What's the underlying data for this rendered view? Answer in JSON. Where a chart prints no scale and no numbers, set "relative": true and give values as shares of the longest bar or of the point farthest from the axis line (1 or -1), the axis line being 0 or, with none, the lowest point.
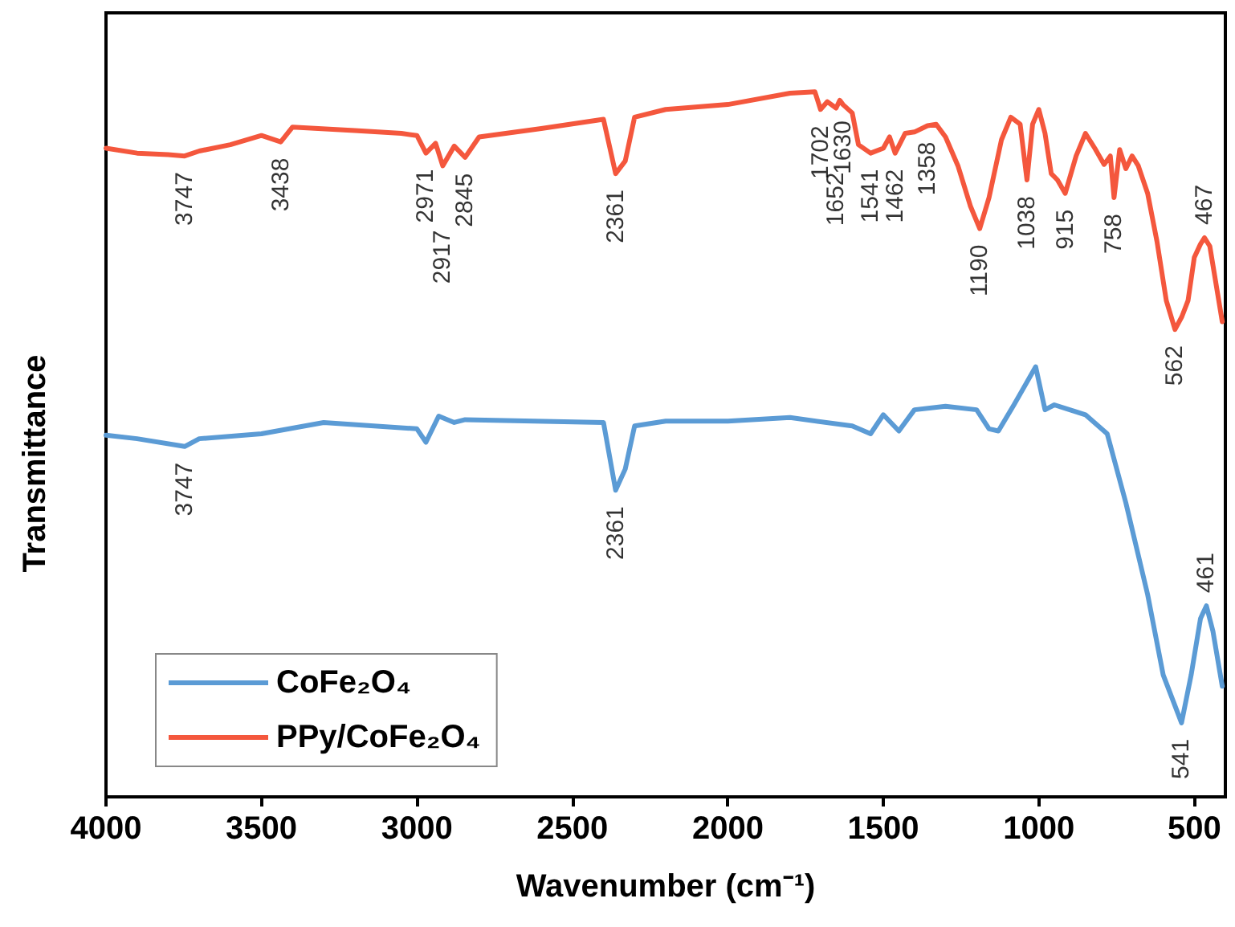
{
  "chart_data": {
    "type": "line",
    "relative": true,
    "xlabel": "Wavenumber (cm⁻¹)",
    "ylabel": "Transmittance",
    "xlim": [
      4000,
      400
    ],
    "xticks": [
      4000,
      3500,
      3000,
      2500,
      2000,
      1500,
      1000,
      500
    ],
    "x": [
      4000,
      3900,
      3747,
      3700,
      3500,
      3300,
      3000,
      2971,
      2930,
      2880,
      2845,
      2400,
      2361,
      2330,
      2300,
      2200,
      2000,
      1800,
      1600,
      1541,
      1500,
      1450,
      1400,
      1300,
      1200,
      1160,
      1130,
      1080,
      1010,
      980,
      950,
      850,
      780,
      720,
      650,
      600,
      541,
      510,
      480,
      461,
      440,
      410
    ],
    "series": [
      {
        "name": "CoFe₂O₄",
        "color": "#5b9bd5",
        "values": [
          0.513,
          0.508,
          0.497,
          0.508,
          0.515,
          0.531,
          0.522,
          0.503,
          0.54,
          0.531,
          0.535,
          0.531,
          0.435,
          0.465,
          0.526,
          0.533,
          0.533,
          0.538,
          0.526,
          0.515,
          0.542,
          0.519,
          0.549,
          0.554,
          0.549,
          0.522,
          0.519,
          0.556,
          0.61,
          0.549,
          0.556,
          0.542,
          0.515,
          0.417,
          0.287,
          0.173,
          0.105,
          0.173,
          0.253,
          0.271,
          0.235,
          0.157
        ]
      },
      {
        "name": "PPy/CoFe₂O₄",
        "color": "#f4573d",
        "x": [
          4000,
          3900,
          3800,
          3747,
          3700,
          3600,
          3500,
          3438,
          3400,
          3200,
          3050,
          3000,
          2971,
          2940,
          2917,
          2880,
          2845,
          2800,
          2600,
          2400,
          2361,
          2330,
          2300,
          2200,
          2000,
          1800,
          1720,
          1702,
          1680,
          1652,
          1640,
          1630,
          1600,
          1580,
          1541,
          1500,
          1480,
          1462,
          1430,
          1400,
          1358,
          1330,
          1300,
          1260,
          1220,
          1190,
          1160,
          1120,
          1090,
          1060,
          1038,
          1020,
          1000,
          980,
          960,
          940,
          915,
          880,
          850,
          820,
          790,
          770,
          758,
          740,
          720,
          700,
          680,
          650,
          620,
          590,
          562,
          540,
          520,
          500,
          480,
          467,
          450,
          410
        ],
        "values": [
          0.92,
          0.913,
          0.911,
          0.909,
          0.916,
          0.925,
          0.938,
          0.929,
          0.95,
          0.945,
          0.941,
          0.938,
          0.913,
          0.927,
          0.895,
          0.923,
          0.907,
          0.936,
          0.948,
          0.961,
          0.884,
          0.902,
          0.964,
          0.975,
          0.982,
          0.998,
          1,
          0.975,
          0.986,
          0.977,
          0.988,
          0.982,
          0.97,
          0.925,
          0.913,
          0.92,
          0.936,
          0.913,
          0.941,
          0.943,
          0.952,
          0.954,
          0.936,
          0.895,
          0.838,
          0.806,
          0.85,
          0.932,
          0.964,
          0.954,
          0.875,
          0.954,
          0.975,
          0.941,
          0.884,
          0.875,
          0.856,
          0.909,
          0.941,
          0.92,
          0.897,
          0.909,
          0.85,
          0.918,
          0.891,
          0.909,
          0.895,
          0.856,
          0.788,
          0.704,
          0.663,
          0.681,
          0.704,
          0.765,
          0.784,
          0.793,
          0.781,
          0.674
        ]
      }
    ],
    "legend": "bottom left",
    "annotations": [
      {
        "text": "3747",
        "x": 3747,
        "y": 0.909
      },
      {
        "text": "3438",
        "x": 3438,
        "y": 0.929
      },
      {
        "text": "2971",
        "x": 2971,
        "y": 0.913
      },
      {
        "text": "2917",
        "x": 2917,
        "y": 0.895
      },
      {
        "text": "2845",
        "x": 2845,
        "y": 0.907
      },
      {
        "text": "2361",
        "x": 2361,
        "y": 0.884
      },
      {
        "text": "1702",
        "x": 1702,
        "y": 0.975
      },
      {
        "text": "1652",
        "x": 1652,
        "y": 0.977
      },
      {
        "text": "1630",
        "x": 1630,
        "y": 0.982
      },
      {
        "text": "1541",
        "x": 1541,
        "y": 0.913
      },
      {
        "text": "1462",
        "x": 1462,
        "y": 0.913
      },
      {
        "text": "1358",
        "x": 1358,
        "y": 0.952
      },
      {
        "text": "1190",
        "x": 1190,
        "y": 0.806
      },
      {
        "text": "1038",
        "x": 1038,
        "y": 0.875
      },
      {
        "text": "915",
        "x": 915,
        "y": 0.856
      },
      {
        "text": "758",
        "x": 758,
        "y": 0.85
      },
      {
        "text": "562",
        "x": 562,
        "y": 0.663
      },
      {
        "text": "467",
        "x": 467,
        "y": 0.793
      },
      {
        "text": "3747",
        "x": 3747,
        "y": 0.497
      },
      {
        "text": "2361",
        "x": 2361,
        "y": 0.435
      },
      {
        "text": "541",
        "x": 541,
        "y": 0.105
      },
      {
        "text": "461",
        "x": 461,
        "y": 0.271
      }
    ]
  }
}
